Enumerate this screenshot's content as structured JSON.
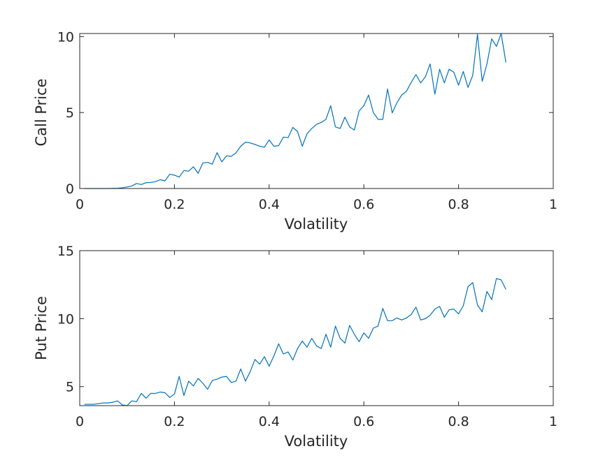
{
  "colors": {
    "series": "#0072BD",
    "axes": "#262626",
    "background": "#ffffff"
  },
  "chart_data": [
    {
      "type": "line",
      "title": "",
      "xlabel": "Volatility",
      "ylabel": "Call Price",
      "xlim": [
        0,
        1
      ],
      "ylim": [
        0,
        10.2
      ],
      "xticks": [
        0,
        0.2,
        0.4,
        0.6,
        0.8,
        1
      ],
      "xtick_labels": [
        "0",
        "0.2",
        "0.4",
        "0.6",
        "0.8",
        "1"
      ],
      "yticks": [
        0,
        5,
        10
      ],
      "ytick_labels": [
        "0",
        "5",
        "10"
      ],
      "grid": false,
      "series": [
        {
          "x": [
            0.01,
            0.02,
            0.03,
            0.04,
            0.05,
            0.06,
            0.07,
            0.08,
            0.09,
            0.1,
            0.11,
            0.12,
            0.13,
            0.14,
            0.15,
            0.16,
            0.17,
            0.18,
            0.19,
            0.2,
            0.21,
            0.22,
            0.23,
            0.24,
            0.25,
            0.26,
            0.27,
            0.28,
            0.29,
            0.3,
            0.31,
            0.32,
            0.33,
            0.34,
            0.35,
            0.36,
            0.37,
            0.38,
            0.39,
            0.4,
            0.41,
            0.42,
            0.43,
            0.44,
            0.45,
            0.46,
            0.47,
            0.48,
            0.49,
            0.5,
            0.51,
            0.52,
            0.53,
            0.54,
            0.55,
            0.56,
            0.57,
            0.58,
            0.59,
            0.6,
            0.61,
            0.62,
            0.63,
            0.64,
            0.65,
            0.66,
            0.67,
            0.68,
            0.69,
            0.7,
            0.71,
            0.72,
            0.73,
            0.74,
            0.75,
            0.76,
            0.77,
            0.78,
            0.79,
            0.8,
            0.81,
            0.82,
            0.83,
            0.84,
            0.85,
            0.86,
            0.87,
            0.88,
            0.89,
            0.9
          ],
          "y": [
            0.0,
            0.0,
            0.0,
            0.0,
            0.0,
            0.0,
            0.01,
            0.02,
            0.05,
            0.1,
            0.17,
            0.33,
            0.26,
            0.38,
            0.4,
            0.45,
            0.58,
            0.5,
            0.94,
            0.88,
            0.75,
            1.18,
            1.14,
            1.43,
            1.0,
            1.68,
            1.72,
            1.6,
            2.36,
            1.75,
            2.15,
            2.12,
            2.35,
            2.78,
            3.05,
            3.0,
            2.9,
            2.78,
            2.72,
            3.2,
            2.78,
            2.82,
            3.38,
            3.35,
            4.02,
            3.75,
            2.78,
            3.6,
            3.95,
            4.22,
            4.35,
            4.55,
            5.45,
            4.05,
            3.95,
            4.7,
            4.05,
            3.85,
            5.1,
            5.45,
            6.15,
            5.0,
            4.55,
            4.55,
            6.55,
            4.98,
            5.65,
            6.15,
            6.4,
            6.98,
            7.5,
            6.95,
            7.35,
            8.2,
            6.2,
            7.85,
            6.95,
            7.85,
            7.65,
            6.8,
            7.7,
            6.65,
            7.45,
            10.15,
            7.05,
            8.2,
            9.85,
            9.35,
            10.25,
            8.3
          ]
        }
      ]
    },
    {
      "type": "line",
      "title": "",
      "xlabel": "Volatility",
      "ylabel": "Put Price",
      "xlim": [
        0,
        1
      ],
      "ylim": [
        3.6,
        15
      ],
      "xticks": [
        0,
        0.2,
        0.4,
        0.6,
        0.8,
        1
      ],
      "xtick_labels": [
        "0",
        "0.2",
        "0.4",
        "0.6",
        "0.8",
        "1"
      ],
      "yticks": [
        5,
        10,
        15
      ],
      "ytick_labels": [
        "5",
        "10",
        "15"
      ],
      "grid": false,
      "series": [
        {
          "x": [
            0.01,
            0.02,
            0.03,
            0.04,
            0.05,
            0.06,
            0.07,
            0.08,
            0.09,
            0.1,
            0.11,
            0.12,
            0.13,
            0.14,
            0.15,
            0.16,
            0.17,
            0.18,
            0.19,
            0.2,
            0.21,
            0.22,
            0.23,
            0.24,
            0.25,
            0.26,
            0.27,
            0.28,
            0.29,
            0.3,
            0.31,
            0.32,
            0.33,
            0.34,
            0.35,
            0.36,
            0.37,
            0.38,
            0.39,
            0.4,
            0.41,
            0.42,
            0.43,
            0.44,
            0.45,
            0.46,
            0.47,
            0.48,
            0.49,
            0.5,
            0.51,
            0.52,
            0.53,
            0.54,
            0.55,
            0.56,
            0.57,
            0.58,
            0.59,
            0.6,
            0.61,
            0.62,
            0.63,
            0.64,
            0.65,
            0.66,
            0.67,
            0.68,
            0.69,
            0.7,
            0.71,
            0.72,
            0.73,
            0.74,
            0.75,
            0.76,
            0.77,
            0.78,
            0.79,
            0.8,
            0.81,
            0.82,
            0.83,
            0.84,
            0.85,
            0.86,
            0.87,
            0.88,
            0.89,
            0.9
          ],
          "y": [
            3.7,
            3.7,
            3.7,
            3.75,
            3.8,
            3.8,
            3.85,
            3.95,
            3.65,
            3.5,
            3.95,
            3.9,
            4.5,
            4.15,
            4.5,
            4.5,
            4.6,
            4.55,
            4.2,
            4.45,
            5.75,
            4.35,
            5.4,
            5.05,
            5.6,
            5.25,
            4.8,
            5.45,
            5.55,
            5.7,
            5.75,
            5.3,
            5.4,
            6.3,
            5.4,
            6.1,
            7.0,
            6.65,
            7.2,
            6.5,
            7.25,
            8.15,
            7.4,
            7.55,
            6.95,
            7.8,
            8.35,
            7.9,
            8.55,
            8.0,
            7.8,
            8.85,
            7.9,
            9.45,
            8.55,
            8.2,
            9.5,
            8.85,
            8.3,
            8.95,
            8.55,
            9.3,
            9.45,
            10.75,
            9.85,
            9.85,
            10.05,
            9.9,
            10.05,
            10.3,
            10.85,
            9.9,
            10.0,
            10.25,
            10.7,
            10.9,
            10.1,
            10.65,
            10.7,
            10.35,
            10.95,
            12.35,
            12.65,
            11.0,
            10.5,
            12.0,
            11.4,
            12.95,
            12.85,
            12.15
          ]
        }
      ]
    }
  ]
}
